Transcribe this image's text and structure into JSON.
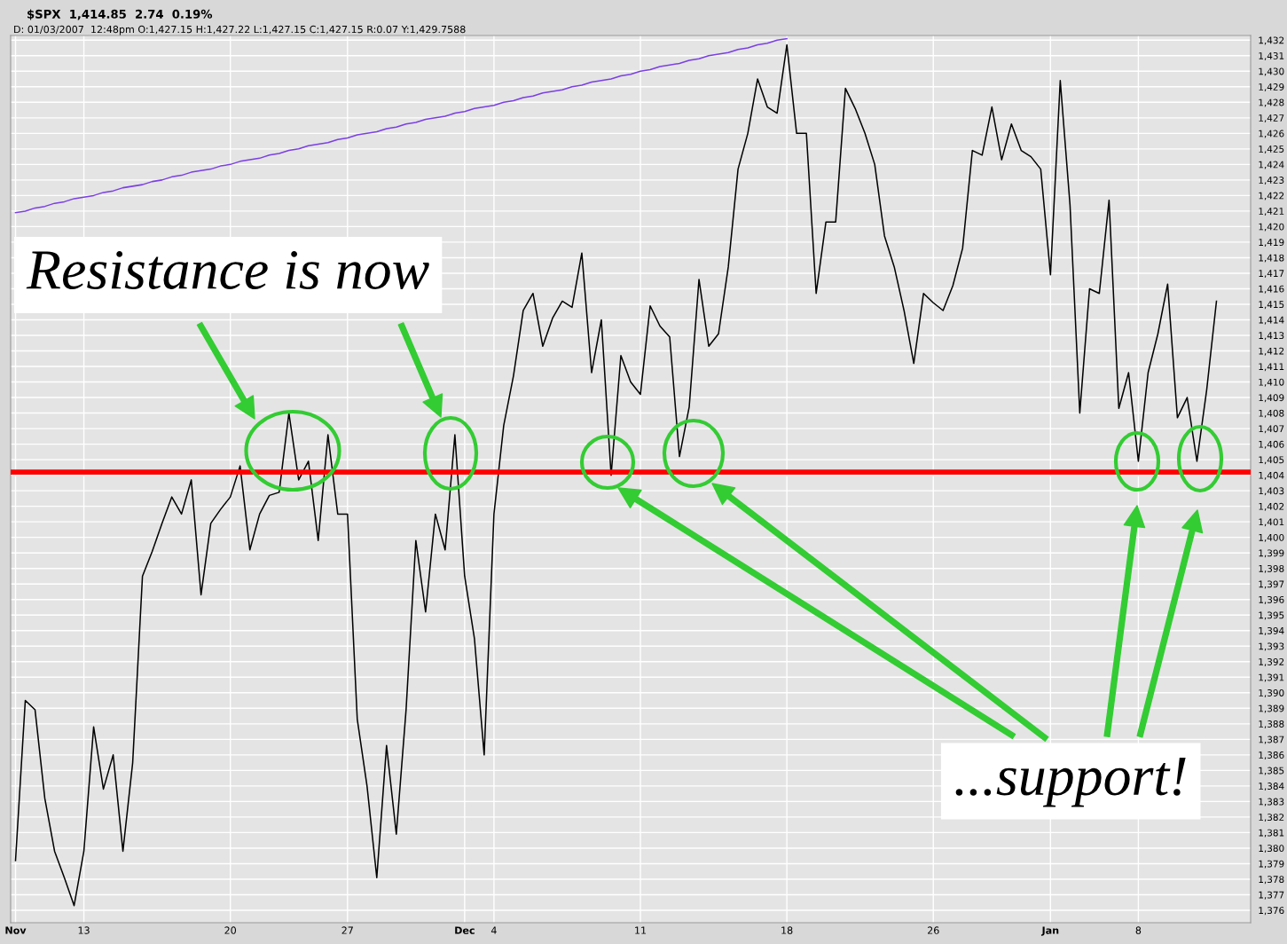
{
  "chart_data": {
    "type": "line",
    "title": "$SPX  1,414.85  2.74  0.19%",
    "subtitle": "D: 01/03/2007  12:48pm O:1,427.15 H:1,427.22 L:1,427.15 C:1,427.15 R:0.07 Y:1,429.7588",
    "categories": [
      "Nov",
      null,
      null,
      null,
      null,
      null,
      null,
      "13",
      null,
      null,
      null,
      null,
      null,
      null,
      null,
      null,
      null,
      null,
      null,
      null,
      null,
      null,
      "20",
      null,
      null,
      null,
      null,
      null,
      null,
      null,
      null,
      null,
      null,
      null,
      "27",
      null,
      null,
      null,
      null,
      null,
      null,
      null,
      null,
      null,
      null,
      null,
      "Dec",
      null,
      null,
      "4",
      null,
      null,
      null,
      null,
      null,
      null,
      null,
      null,
      null,
      null,
      null,
      null,
      null,
      null,
      "11",
      null,
      null,
      null,
      null,
      null,
      null,
      null,
      null,
      null,
      null,
      null,
      null,
      null,
      null,
      "18",
      null,
      null,
      null,
      null,
      null,
      null,
      null,
      null,
      null,
      null,
      null,
      null,
      null,
      null,
      "26",
      null,
      null,
      null,
      null,
      null,
      null,
      null,
      null,
      null,
      null,
      null,
      "Jan",
      null,
      null,
      null,
      null,
      null,
      null,
      null,
      null,
      "8",
      null,
      null,
      null,
      null,
      null,
      null,
      null,
      null
    ],
    "series": [
      {
        "color": "#000000",
        "values": [
          1379.2,
          1389.5,
          1388.9,
          1383.2,
          1379.8,
          1378.1,
          1376.3,
          1379.8,
          1387.8,
          1383.8,
          1386.0,
          1379.8,
          1385.5,
          1397.5,
          1399.1,
          1400.9,
          1402.6,
          1401.5,
          1403.7,
          1396.3,
          1400.9,
          1401.8,
          1402.6,
          1404.6,
          1399.2,
          1401.5,
          1402.7,
          1402.9,
          1408.0,
          1403.7,
          1404.9,
          1399.8,
          1406.6,
          1401.5,
          1401.5,
          1388.3,
          1384.0,
          1378.1,
          1386.6,
          1380.9,
          1388.9,
          1399.8,
          1395.2,
          1401.5,
          1399.2,
          1406.6,
          1397.5,
          1393.5,
          1386.0,
          1401.5,
          1407.2,
          1410.4,
          1414.6,
          1415.7,
          1412.3,
          1414.1,
          1415.2,
          1414.8,
          1418.3,
          1410.6,
          1414.0,
          1404.0,
          1411.7,
          1410.0,
          1409.2,
          1414.9,
          1413.6,
          1412.9,
          1405.2,
          1408.4,
          1416.6,
          1412.3,
          1413.1,
          1417.4,
          1423.7,
          1426.0,
          1429.5,
          1427.7,
          1427.3,
          1431.7,
          1426.0,
          1426.0,
          1415.7,
          1420.3,
          1420.3,
          1428.9,
          1427.6,
          1426.0,
          1424.0,
          1419.4,
          1417.4,
          1414.6,
          1411.2,
          1415.7,
          1415.1,
          1414.6,
          1416.2,
          1418.6,
          1424.9,
          1424.6,
          1427.7,
          1424.3,
          1426.6,
          1424.9,
          1424.5,
          1423.7,
          1416.9,
          1429.4,
          1421.4,
          1408.0,
          1416.0,
          1415.7,
          1421.7,
          1408.3,
          1410.6,
          1404.9,
          1410.6,
          1413.1,
          1416.3,
          1407.7,
          1409.0,
          1404.9,
          1409.5,
          1415.2
        ]
      },
      {
        "color": "#7b3fe4",
        "values": [
          1420.9,
          1421.0,
          1421.2,
          1421.3,
          1421.5,
          1421.6,
          1421.8,
          1421.9,
          1422.0,
          1422.2,
          1422.3,
          1422.5,
          1422.6,
          1422.7,
          1422.9,
          1423.0,
          1423.2,
          1423.3,
          1423.5,
          1423.6,
          1423.7,
          1423.9,
          1424.0,
          1424.2,
          1424.3,
          1424.4,
          1424.6,
          1424.7,
          1424.9,
          1425.0,
          1425.2,
          1425.3,
          1425.4,
          1425.6,
          1425.7,
          1425.9,
          1426.0,
          1426.1,
          1426.3,
          1426.4,
          1426.6,
          1426.7,
          1426.9,
          1427.0,
          1427.1,
          1427.3,
          1427.4,
          1427.6,
          1427.7,
          1427.8,
          1428.0,
          1428.1,
          1428.3,
          1428.4,
          1428.6,
          1428.7,
          1428.8,
          1429.0,
          1429.1,
          1429.3,
          1429.4,
          1429.5,
          1429.7,
          1429.8,
          1430.0,
          1430.1,
          1430.3,
          1430.4,
          1430.5,
          1430.7,
          1430.8,
          1431.0,
          1431.1,
          1431.2,
          1431.4,
          1431.5,
          1431.7,
          1431.8,
          1432.0,
          1432.1,
          null,
          null,
          null,
          null,
          null,
          null,
          null,
          null,
          null,
          null,
          null,
          null,
          null,
          null,
          null,
          null,
          null,
          null,
          null,
          null,
          null,
          null,
          null,
          null,
          null,
          null,
          null,
          null,
          null,
          null,
          null,
          null,
          null,
          null,
          null,
          null,
          null,
          null,
          null,
          null,
          null,
          null,
          null,
          null
        ]
      }
    ],
    "ref_lines": [
      {
        "axis": "y",
        "value": 1404.2,
        "color": "#ff0000"
      }
    ],
    "annotations": [
      "Resistance is now",
      "...support!"
    ],
    "ylim": [
      1375.2,
      1432.3
    ],
    "yticks": [
      {
        "value": 1376,
        "label": "1,376"
      },
      {
        "value": 1377,
        "label": "1,377"
      },
      {
        "value": 1378,
        "label": "1,378"
      },
      {
        "value": 1379,
        "label": "1,379"
      },
      {
        "value": 1380,
        "label": "1,380"
      },
      {
        "value": 1381,
        "label": "1,381"
      },
      {
        "value": 1382,
        "label": "1,382"
      },
      {
        "value": 1383,
        "label": "1,383"
      },
      {
        "value": 1384,
        "label": "1,384"
      },
      {
        "value": 1385,
        "label": "1,385"
      },
      {
        "value": 1386,
        "label": "1,386"
      },
      {
        "value": 1387,
        "label": "1,387"
      },
      {
        "value": 1388,
        "label": "1,388"
      },
      {
        "value": 1389,
        "label": "1,389"
      },
      {
        "value": 1390,
        "label": "1,390"
      },
      {
        "value": 1391,
        "label": "1,391"
      },
      {
        "value": 1392,
        "label": "1,392"
      },
      {
        "value": 1393,
        "label": "1,393"
      },
      {
        "value": 1394,
        "label": "1,394"
      },
      {
        "value": 1395,
        "label": "1,395"
      },
      {
        "value": 1396,
        "label": "1,396"
      },
      {
        "value": 1397,
        "label": "1,397"
      },
      {
        "value": 1398,
        "label": "1,398"
      },
      {
        "value": 1399,
        "label": "1,399"
      },
      {
        "value": 1400,
        "label": "1,400"
      },
      {
        "value": 1401,
        "label": "1,401"
      },
      {
        "value": 1402,
        "label": "1,402"
      },
      {
        "value": 1403,
        "label": "1,403"
      },
      {
        "value": 1404,
        "label": "1,404"
      },
      {
        "value": 1405,
        "label": "1,405"
      },
      {
        "value": 1406,
        "label": "1,406"
      },
      {
        "value": 1407,
        "label": "1,407"
      },
      {
        "value": 1408,
        "label": "1,408"
      },
      {
        "value": 1409,
        "label": "1,409"
      },
      {
        "value": 1410,
        "label": "1,410"
      },
      {
        "value": 1411,
        "label": "1,411"
      },
      {
        "value": 1412,
        "label": "1,412"
      },
      {
        "value": 1413,
        "label": "1,413"
      },
      {
        "value": 1414,
        "label": "1,414"
      },
      {
        "value": 1415,
        "label": "1,415"
      },
      {
        "value": 1416,
        "label": "1,416"
      },
      {
        "value": 1417,
        "label": "1,417"
      },
      {
        "value": 1418,
        "label": "1,418"
      },
      {
        "value": 1419,
        "label": "1,419"
      },
      {
        "value": 1420,
        "label": "1,420"
      },
      {
        "value": 1421,
        "label": "1,421"
      },
      {
        "value": 1422,
        "label": "1,422"
      },
      {
        "value": 1423,
        "label": "1,423"
      },
      {
        "value": 1424,
        "label": "1,424"
      },
      {
        "value": 1425,
        "label": "1,425"
      },
      {
        "value": 1426,
        "label": "1,426"
      },
      {
        "value": 1427,
        "label": "1,427"
      },
      {
        "value": 1428,
        "label": "1,428"
      },
      {
        "value": 1429,
        "label": "1,429"
      },
      {
        "value": 1430,
        "label": "1,430"
      },
      {
        "value": 1431,
        "label": "1,431"
      },
      {
        "value": 1432,
        "label": "1,432"
      }
    ],
    "grid": true,
    "marker": "none",
    "line_style": "solid"
  }
}
